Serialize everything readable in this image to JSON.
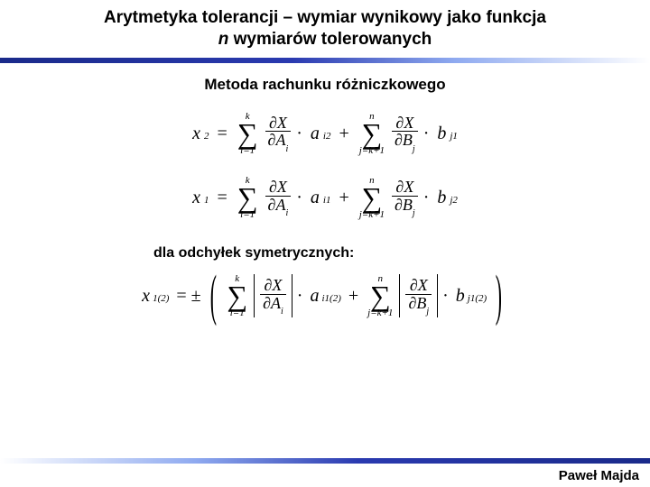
{
  "title_line1": "Arytmetyka tolerancji – wymiar wynikowy jako funkcja",
  "title_line2_italic": "n",
  "title_line2_rest": " wymiarów tolerowanych",
  "subtitle": "Metoda rachunku różniczkowego",
  "eq1": {
    "lhs_var": "x",
    "lhs_sub": "2",
    "sum1_top": "k",
    "sum1_bot": "i=1",
    "frac1_num": "∂X",
    "frac1_den_sym": "∂A",
    "frac1_den_sub": "i",
    "term1_var": "a",
    "term1_sub": "i2",
    "sum2_top": "n",
    "sum2_bot": "j=k+1",
    "frac2_num": "∂X",
    "frac2_den_sym": "∂B",
    "frac2_den_sub": "j",
    "term2_var": "b",
    "term2_sub": "j1"
  },
  "eq2": {
    "lhs_var": "x",
    "lhs_sub": "1",
    "sum1_top": "k",
    "sum1_bot": "i=1",
    "frac1_num": "∂X",
    "frac1_den_sym": "∂A",
    "frac1_den_sub": "i",
    "term1_var": "a",
    "term1_sub": "i1",
    "sum2_top": "n",
    "sum2_bot": "j=k+1",
    "frac2_num": "∂X",
    "frac2_den_sym": "∂B",
    "frac2_den_sub": "j",
    "term2_var": "b",
    "term2_sub": "j2"
  },
  "midtext": "dla odchyłek symetrycznych:",
  "eq3": {
    "lhs_var": "x",
    "lhs_sub": "1(2)",
    "sum1_top": "k",
    "sum1_bot": "i=1",
    "frac1_num": "∂X",
    "frac1_den_sym": "∂A",
    "frac1_den_sub": "i",
    "term1_var": "a",
    "term1_sub": "i1(2)",
    "sum2_top": "n",
    "sum2_bot": "j=k+1",
    "frac2_num": "∂X",
    "frac2_den_sym": "∂B",
    "frac2_den_sub": "j",
    "term2_var": "b",
    "term2_sub": "j1(2)"
  },
  "author": "Paweł Majda",
  "colors": {
    "rule_dark": "#1a2a8a",
    "rule_light": "#8faaf0",
    "background": "#ffffff",
    "text": "#000000"
  }
}
